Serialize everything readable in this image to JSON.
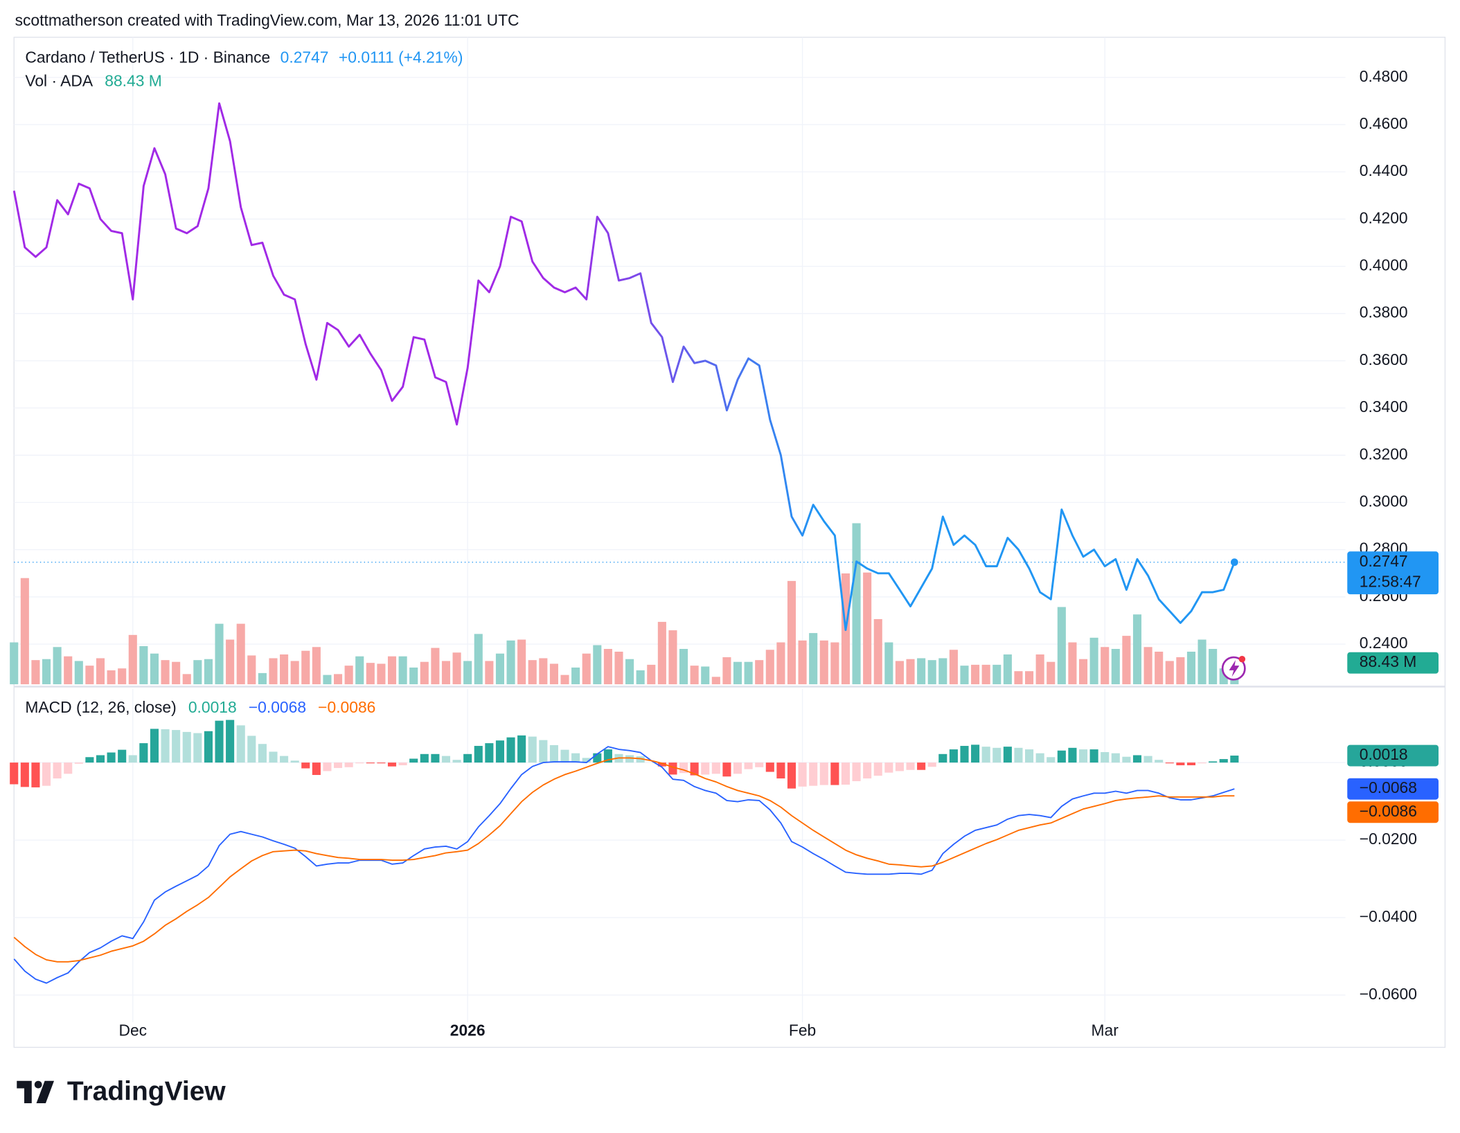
{
  "header": "scottmatherson created with TradingView.com, Mar 13, 2026 11:01 UTC",
  "footer": "TradingView",
  "chart_data": [
    {
      "type": "line",
      "title": "Cardano / TetherUS · 1D · Binance",
      "change": "+0.0111 (+4.21%)",
      "countdown": "12:58:47",
      "grid": true,
      "categories": [
        null,
        null,
        null,
        null,
        null,
        null,
        null,
        null,
        null,
        null,
        null,
        "Dec",
        null,
        null,
        null,
        null,
        null,
        null,
        null,
        null,
        null,
        null,
        null,
        null,
        null,
        null,
        null,
        null,
        null,
        null,
        null,
        null,
        null,
        null,
        null,
        null,
        null,
        null,
        null,
        null,
        null,
        null,
        "2026",
        null,
        null,
        null,
        null,
        null,
        null,
        null,
        null,
        null,
        null,
        null,
        null,
        null,
        null,
        null,
        null,
        null,
        null,
        null,
        null,
        null,
        null,
        null,
        null,
        null,
        null,
        null,
        null,
        null,
        null,
        "Feb",
        null,
        null,
        null,
        null,
        null,
        null,
        null,
        null,
        null,
        null,
        null,
        null,
        null,
        null,
        null,
        null,
        null,
        null,
        null,
        null,
        null,
        null,
        null,
        null,
        null,
        null,
        null,
        "Mar",
        null,
        null,
        null,
        null,
        null,
        null,
        null,
        null,
        null,
        null,
        null,
        null
      ],
      "series": [
        {
          "gradient": [
            "#a12ae6",
            "#2196f3"
          ],
          "values": [
            0.432,
            0.408,
            0.404,
            0.408,
            0.428,
            0.422,
            0.435,
            0.433,
            0.42,
            0.415,
            0.414,
            0.386,
            0.434,
            0.45,
            0.439,
            0.416,
            0.414,
            0.417,
            0.433,
            0.469,
            0.453,
            0.425,
            0.409,
            0.41,
            0.396,
            0.388,
            0.386,
            0.367,
            0.352,
            0.376,
            0.373,
            0.366,
            0.371,
            0.363,
            0.356,
            0.343,
            0.349,
            0.37,
            0.369,
            0.353,
            0.351,
            0.333,
            0.357,
            0.394,
            0.389,
            0.4,
            0.421,
            0.419,
            0.402,
            0.395,
            0.391,
            0.389,
            0.391,
            0.386,
            0.421,
            0.414,
            0.394,
            0.395,
            0.397,
            0.376,
            0.37,
            0.351,
            0.366,
            0.359,
            0.36,
            0.358,
            0.339,
            0.352,
            0.361,
            0.358,
            0.335,
            0.32,
            0.294,
            0.286,
            0.299,
            0.292,
            0.286,
            0.246,
            0.275,
            0.272,
            0.27,
            0.27,
            0.263,
            0.256,
            0.264,
            0.272,
            0.294,
            0.282,
            0.286,
            0.282,
            0.273,
            0.273,
            0.285,
            0.28,
            0.272,
            0.262,
            0.259,
            0.297,
            0.286,
            0.277,
            0.28,
            0.273,
            0.276,
            0.263,
            0.276,
            0.269,
            0.259,
            0.254,
            0.249,
            0.254,
            0.262,
            0.262,
            0.263,
            0.2747
          ]
        }
      ],
      "volume": {
        "name": "Vol · ADA",
        "up_color": "#92d2cc",
        "down_color": "#f7a9a7",
        "label_color": "#22ab94",
        "last_value_label": "88.43 M",
        "values": [
          333,
          844,
          192,
          200,
          296,
          222,
          185,
          148,
          207,
          111,
          126,
          392,
          303,
          244,
          192,
          178,
          81,
          192,
          200,
          481,
          355,
          481,
          229,
          89,
          207,
          237,
          185,
          266,
          296,
          74,
          81,
          148,
          222,
          170,
          163,
          222,
          222,
          133,
          178,
          289,
          185,
          252,
          185,
          400,
          185,
          244,
          348,
          355,
          192,
          207,
          163,
          74,
          133,
          244,
          311,
          281,
          259,
          200,
          111,
          155,
          496,
          429,
          281,
          148,
          141,
          59,
          215,
          178,
          178,
          192,
          274,
          333,
          821,
          348,
          407,
          348,
          333,
          881,
          1280,
          888,
          518,
          333,
          185,
          200,
          207,
          192,
          207,
          274,
          148,
          155,
          155,
          155,
          237,
          104,
          104,
          237,
          178,
          614,
          333,
          200,
          370,
          296,
          281,
          385,
          555,
          296,
          259,
          185,
          215,
          259,
          355,
          281,
          126,
          88.43
        ]
      },
      "ylim": [
        0.223,
        0.497
      ],
      "yticks": [
        {
          "value": 0.24,
          "label": "0.2400"
        },
        {
          "value": 0.26,
          "label": "0.2600"
        },
        {
          "value": 0.28,
          "label": "0.2800"
        },
        {
          "value": 0.3,
          "label": "0.3000"
        },
        {
          "value": 0.32,
          "label": "0.3200"
        },
        {
          "value": 0.34,
          "label": "0.3400"
        },
        {
          "value": 0.36,
          "label": "0.3600"
        },
        {
          "value": 0.38,
          "label": "0.3800"
        },
        {
          "value": 0.4,
          "label": "0.4000"
        },
        {
          "value": 0.42,
          "label": "0.4200"
        },
        {
          "value": 0.44,
          "label": "0.4400"
        },
        {
          "value": 0.46,
          "label": "0.4600"
        },
        {
          "value": 0.48,
          "label": "0.4800"
        }
      ]
    },
    {
      "type": "macd",
      "title": "MACD (12, 26, close)",
      "grid": true,
      "series": [
        {
          "colors": [
            "#26a69a",
            "#b2dfdb",
            "#ff5252",
            "#ffcdd2"
          ],
          "values": [
            -0.0056,
            -0.0063,
            -0.0064,
            -0.006,
            -0.0041,
            -0.0029,
            -0.0003,
            0.0014,
            0.0019,
            0.0026,
            0.0033,
            0.0019,
            0.005,
            0.0087,
            0.0086,
            0.0084,
            0.0079,
            0.0076,
            0.0081,
            0.0108,
            0.011,
            0.0096,
            0.0069,
            0.0048,
            0.0028,
            0.0017,
            0.0005,
            -0.0015,
            -0.0032,
            -0.0022,
            -0.0014,
            -0.0012,
            -0.0002,
            -0.0002,
            -0.0002,
            -0.001,
            -0.0007,
            0.001,
            0.0022,
            0.0022,
            0.0017,
            0.0007,
            0.0022,
            0.0043,
            0.005,
            0.0057,
            0.0065,
            0.007,
            0.0067,
            0.0058,
            0.0045,
            0.0033,
            0.0024,
            0.0012,
            0.0024,
            0.0034,
            0.0022,
            0.0019,
            0.0016,
            0,
            -0.001,
            -0.0031,
            -0.0027,
            -0.0033,
            -0.0031,
            -0.0029,
            -0.0036,
            -0.0029,
            -0.0017,
            -0.0012,
            -0.0024,
            -0.0041,
            -0.0067,
            -0.0062,
            -0.006,
            -0.0058,
            -0.0058,
            -0.0057,
            -0.0048,
            -0.0041,
            -0.0034,
            -0.0026,
            -0.0022,
            -0.0019,
            -0.0019,
            -0.0011,
            0.0022,
            0.0034,
            0.0043,
            0.0046,
            0.0041,
            0.0038,
            0.0041,
            0.0038,
            0.0034,
            0.0024,
            0.0014,
            0.0031,
            0.0038,
            0.0034,
            0.0034,
            0.0027,
            0.0024,
            0.0015,
            0.0019,
            0.0017,
            0.0007,
            -0.0002,
            -0.0007,
            -0.0007,
            -0.0002,
            0.0003,
            0.0009,
            0.0018
          ]
        },
        {
          "color": "#2962ff",
          "last_label": "−0.0068",
          "values": [
            -0.0507,
            -0.0538,
            -0.0559,
            -0.0569,
            -0.0555,
            -0.0543,
            -0.0514,
            -0.049,
            -0.0478,
            -0.0461,
            -0.0447,
            -0.0454,
            -0.0411,
            -0.0355,
            -0.0334,
            -0.0319,
            -0.0305,
            -0.0291,
            -0.0267,
            -0.0214,
            -0.0185,
            -0.0178,
            -0.0185,
            -0.0192,
            -0.0202,
            -0.0211,
            -0.0221,
            -0.0243,
            -0.0267,
            -0.0262,
            -0.0259,
            -0.0259,
            -0.0252,
            -0.0252,
            -0.0252,
            -0.0262,
            -0.0259,
            -0.024,
            -0.0223,
            -0.0218,
            -0.0216,
            -0.0223,
            -0.0204,
            -0.0166,
            -0.0137,
            -0.0106,
            -0.0067,
            -0.0031,
            -0.001,
            0,
            0.0002,
            0.0002,
            0.0002,
            0,
            0.0022,
            0.0041,
            0.0034,
            0.0031,
            0.0026,
            0.0005,
            -0.0012,
            -0.0043,
            -0.0046,
            -0.0062,
            -0.0072,
            -0.0079,
            -0.0098,
            -0.0101,
            -0.0096,
            -0.0098,
            -0.0122,
            -0.0156,
            -0.0204,
            -0.0218,
            -0.0235,
            -0.025,
            -0.0267,
            -0.0283,
            -0.0286,
            -0.0288,
            -0.0288,
            -0.0288,
            -0.0286,
            -0.0286,
            -0.0288,
            -0.0278,
            -0.0235,
            -0.0211,
            -0.019,
            -0.0175,
            -0.0168,
            -0.0161,
            -0.0146,
            -0.0137,
            -0.0134,
            -0.0137,
            -0.0142,
            -0.0113,
            -0.0094,
            -0.0086,
            -0.0079,
            -0.0079,
            -0.0074,
            -0.0079,
            -0.0072,
            -0.0072,
            -0.0079,
            -0.0091,
            -0.0096,
            -0.0096,
            -0.0091,
            -0.0086,
            -0.0077,
            -0.0068
          ]
        },
        {
          "color": "#ff6d00",
          "last_label": "−0.0086",
          "values": [
            -0.0451,
            -0.0475,
            -0.0495,
            -0.0509,
            -0.0514,
            -0.0514,
            -0.0511,
            -0.0504,
            -0.0497,
            -0.0487,
            -0.048,
            -0.0473,
            -0.0461,
            -0.0442,
            -0.042,
            -0.0403,
            -0.0384,
            -0.0367,
            -0.0348,
            -0.0322,
            -0.0295,
            -0.0274,
            -0.0254,
            -0.024,
            -0.023,
            -0.0228,
            -0.0226,
            -0.0228,
            -0.0235,
            -0.024,
            -0.0245,
            -0.0247,
            -0.025,
            -0.025,
            -0.025,
            -0.0252,
            -0.0252,
            -0.025,
            -0.0245,
            -0.024,
            -0.0233,
            -0.023,
            -0.0226,
            -0.0209,
            -0.0187,
            -0.0163,
            -0.0132,
            -0.0101,
            -0.0077,
            -0.0058,
            -0.0043,
            -0.0031,
            -0.0022,
            -0.0012,
            -0.0002,
            0.0007,
            0.0012,
            0.0012,
            0.001,
            0.0005,
            -0.0002,
            -0.0012,
            -0.0019,
            -0.0029,
            -0.0041,
            -0.005,
            -0.0062,
            -0.0072,
            -0.0079,
            -0.0086,
            -0.0098,
            -0.0115,
            -0.0137,
            -0.0156,
            -0.0175,
            -0.0192,
            -0.0209,
            -0.0226,
            -0.0238,
            -0.0247,
            -0.0254,
            -0.0262,
            -0.0264,
            -0.0267,
            -0.0269,
            -0.0267,
            -0.0257,
            -0.0245,
            -0.0233,
            -0.0221,
            -0.0209,
            -0.0199,
            -0.0187,
            -0.0175,
            -0.0168,
            -0.0161,
            -0.0156,
            -0.0144,
            -0.0132,
            -0.012,
            -0.0113,
            -0.0106,
            -0.0098,
            -0.0094,
            -0.0091,
            -0.0089,
            -0.0086,
            -0.0089,
            -0.0089,
            -0.0089,
            -0.0089,
            -0.0089,
            -0.0086,
            -0.0086
          ]
        }
      ],
      "ylim": [
        -0.067,
        0.019
      ],
      "yticks": [
        {
          "value": 0,
          "label": "0.0000"
        },
        {
          "value": -0.02,
          "label": "−0.0200"
        },
        {
          "value": -0.04,
          "label": "−0.0400"
        },
        {
          "value": -0.06,
          "label": "−0.0600"
        }
      ]
    }
  ]
}
